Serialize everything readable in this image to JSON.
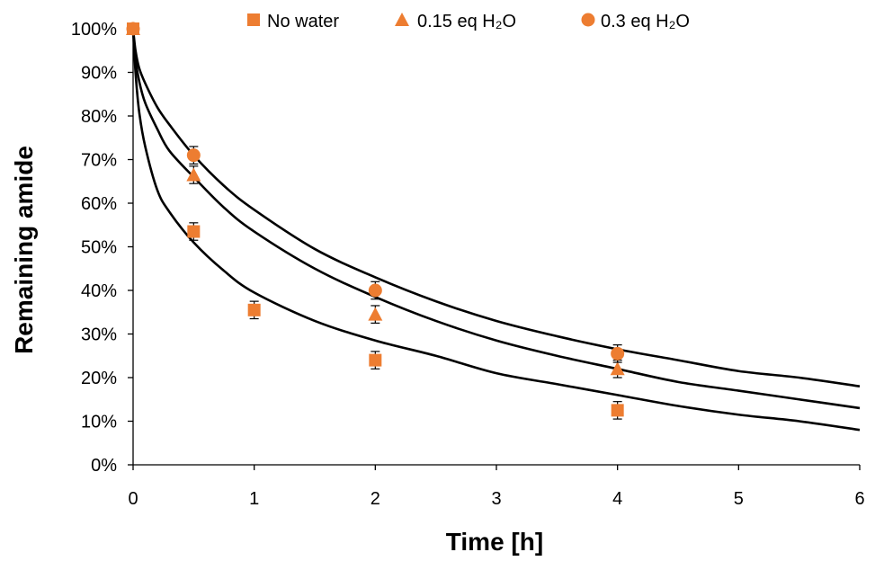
{
  "chart_data": {
    "type": "scatter",
    "xlabel": "Time [h]",
    "ylabel": "Remaining amide",
    "xlim": [
      0,
      6
    ],
    "ylim": [
      0,
      100
    ],
    "x_ticks": [
      "0",
      "1",
      "2",
      "3",
      "4",
      "5",
      "6"
    ],
    "y_ticks": [
      "0%",
      "10%",
      "20%",
      "30%",
      "40%",
      "50%",
      "60%",
      "70%",
      "80%",
      "90%",
      "100%"
    ],
    "grid": false,
    "legend_position": "top",
    "marker_color": "#ED7D31",
    "fit_line_color": "#000000",
    "series": [
      {
        "name": "No water",
        "marker": "square",
        "x": [
          0,
          0.5,
          1,
          2,
          4
        ],
        "y": [
          100,
          53.5,
          35.5,
          24,
          12.5
        ],
        "error": [
          0,
          2,
          2,
          2,
          2
        ],
        "fit": [
          [
            0,
            100
          ],
          [
            0.02,
            90
          ],
          [
            0.05,
            81
          ],
          [
            0.1,
            73
          ],
          [
            0.2,
            63
          ],
          [
            0.3,
            58
          ],
          [
            0.5,
            51
          ],
          [
            0.75,
            44.5
          ],
          [
            1,
            39.5
          ],
          [
            1.5,
            33
          ],
          [
            2,
            28.5
          ],
          [
            2.5,
            25
          ],
          [
            3,
            21
          ],
          [
            3.5,
            18.5
          ],
          [
            4,
            16
          ],
          [
            4.5,
            13.5
          ],
          [
            5,
            11.5
          ],
          [
            5.5,
            10
          ],
          [
            6,
            8
          ]
        ]
      },
      {
        "name": "0.15 eq H₂O",
        "marker": "triangle",
        "x": [
          0,
          0.5,
          2,
          4
        ],
        "y": [
          100,
          66.5,
          34.5,
          22
        ],
        "error": [
          0,
          2,
          2,
          2
        ],
        "fit": [
          [
            0,
            100
          ],
          [
            0.02,
            93
          ],
          [
            0.05,
            88
          ],
          [
            0.1,
            83
          ],
          [
            0.2,
            77
          ],
          [
            0.3,
            72
          ],
          [
            0.5,
            66
          ],
          [
            0.75,
            59
          ],
          [
            1,
            53.5
          ],
          [
            1.5,
            45
          ],
          [
            2,
            38.5
          ],
          [
            2.5,
            33
          ],
          [
            3,
            28.5
          ],
          [
            3.5,
            25
          ],
          [
            4,
            22
          ],
          [
            4.5,
            19
          ],
          [
            5,
            17
          ],
          [
            5.5,
            15
          ],
          [
            6,
            13
          ]
        ]
      },
      {
        "name": "0.3 eq H₂O",
        "marker": "circle",
        "x": [
          0,
          0.5,
          2,
          4
        ],
        "y": [
          100,
          71,
          40,
          25.5
        ],
        "error": [
          0,
          2,
          2,
          2
        ],
        "fit": [
          [
            0,
            100
          ],
          [
            0.02,
            95
          ],
          [
            0.05,
            91
          ],
          [
            0.1,
            87.5
          ],
          [
            0.2,
            82
          ],
          [
            0.3,
            78
          ],
          [
            0.5,
            71
          ],
          [
            0.75,
            64
          ],
          [
            1,
            58.5
          ],
          [
            1.5,
            49.5
          ],
          [
            2,
            43
          ],
          [
            2.5,
            37.5
          ],
          [
            3,
            33
          ],
          [
            3.5,
            29.5
          ],
          [
            4,
            26.5
          ],
          [
            4.5,
            24
          ],
          [
            5,
            21.5
          ],
          [
            5.5,
            20
          ],
          [
            6,
            18
          ]
        ]
      }
    ]
  }
}
